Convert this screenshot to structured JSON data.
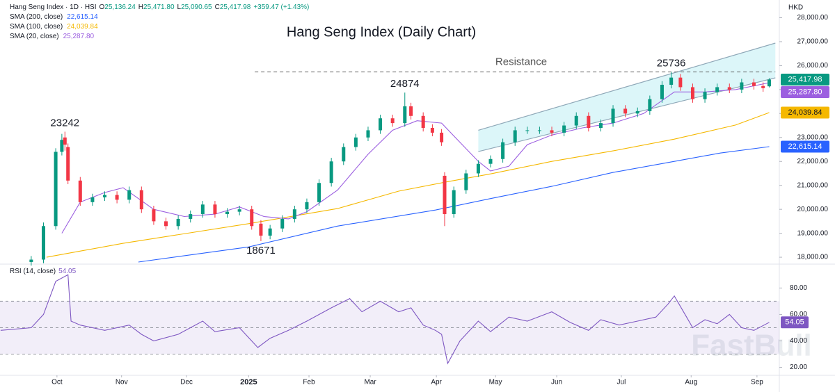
{
  "watermark": "FastBull",
  "chart_data": [
    {
      "type": "candlestick",
      "title": "Hang Seng Index (Daily Chart)",
      "currency": "HKD",
      "header": {
        "symbol": "Hang Seng Index · 1D · HSI",
        "fields": [
          {
            "key": "O",
            "value": "25,136.24"
          },
          {
            "key": "H",
            "value": "25,471.80"
          },
          {
            "key": "L",
            "value": "25,090.65"
          },
          {
            "key": "C",
            "value": "25,417.98"
          }
        ],
        "change": "+359.47 (+1.43%)"
      },
      "up_color": "#089981",
      "down_color": "#f23645",
      "x": [
        0,
        4,
        8,
        10,
        11,
        12,
        16,
        20,
        24,
        28,
        32,
        36,
        40,
        44,
        48,
        52,
        56,
        60,
        64,
        68,
        72,
        75,
        78,
        82,
        86,
        90,
        94,
        98,
        102,
        106,
        110,
        114,
        118,
        122,
        124,
        128,
        131,
        134,
        135,
        138,
        142,
        146,
        150,
        154,
        158,
        162,
        166,
        170,
        174,
        178,
        182,
        186,
        190,
        194,
        198,
        202,
        206,
        209,
        212,
        216,
        220,
        224,
        228,
        232,
        236,
        239,
        241
      ],
      "open": [
        17800,
        17900,
        19300,
        22400,
        23000,
        22600,
        21200,
        20300,
        20500,
        20600,
        20400,
        20800,
        20000,
        19500,
        19300,
        19600,
        19800,
        20200,
        19800,
        19900,
        20000,
        19400,
        18900,
        19200,
        19600,
        20000,
        20300,
        21100,
        22000,
        22600,
        23000,
        23300,
        23800,
        23600,
        24300,
        23900,
        23400,
        23200,
        21400,
        19800,
        20800,
        21500,
        21900,
        22100,
        22800,
        23300,
        23300,
        23300,
        23200,
        23500,
        23900,
        23400,
        23600,
        24200,
        24000,
        24100,
        24600,
        25200,
        25500,
        25100,
        24600,
        24900,
        25100,
        25000,
        25300,
        25150,
        25136.24
      ],
      "high": [
        18050,
        19450,
        22550,
        23150,
        23242,
        22750,
        21350,
        20650,
        20750,
        20750,
        20950,
        20950,
        20150,
        19650,
        19750,
        19950,
        20350,
        20350,
        20050,
        20150,
        20150,
        19550,
        19350,
        19750,
        20150,
        20450,
        21250,
        22150,
        22750,
        23150,
        23450,
        23950,
        23950,
        24874,
        24450,
        24050,
        23550,
        23350,
        21550,
        20950,
        21650,
        22050,
        22250,
        22950,
        23450,
        23450,
        23450,
        23450,
        23650,
        24050,
        24050,
        23750,
        24350,
        24350,
        24250,
        24750,
        25350,
        25736,
        25650,
        25250,
        25050,
        25250,
        25250,
        25450,
        25450,
        25300,
        25471.8
      ],
      "low": [
        17650,
        17750,
        19150,
        22250,
        22450,
        21050,
        20150,
        20150,
        20350,
        20250,
        20250,
        19850,
        19350,
        19150,
        19150,
        19450,
        19650,
        19650,
        19650,
        19750,
        19150,
        18671,
        18750,
        19050,
        19450,
        19850,
        20150,
        20950,
        21850,
        22450,
        22850,
        23150,
        23450,
        23450,
        23750,
        23250,
        23050,
        22650,
        19300,
        19650,
        20650,
        21350,
        21750,
        21950,
        22650,
        23150,
        23150,
        23050,
        23050,
        23350,
        23250,
        23250,
        23450,
        23850,
        23850,
        23950,
        24450,
        25050,
        24950,
        24450,
        24450,
        24750,
        24850,
        24850,
        25000,
        24910,
        25090.65
      ],
      "close": [
        17900,
        19300,
        22400,
        22900,
        22700,
        21200,
        20300,
        20500,
        20600,
        20400,
        20800,
        20000,
        19500,
        19300,
        19600,
        19800,
        20200,
        19800,
        19900,
        20000,
        19300,
        18900,
        19200,
        19600,
        20000,
        20300,
        21100,
        22000,
        22600,
        23000,
        23300,
        23800,
        23600,
        24300,
        23900,
        23400,
        23200,
        22800,
        19800,
        20800,
        21500,
        21900,
        22100,
        22800,
        23300,
        23300,
        23300,
        23200,
        23500,
        23900,
        23400,
        23600,
        24200,
        24000,
        24100,
        24600,
        25200,
        25500,
        25100,
        24600,
        24900,
        25100,
        25000,
        25300,
        25150,
        25060,
        25417.98
      ],
      "last_label": "25,417.98",
      "overlays": [
        {
          "name": "SMA (200, close)",
          "color": "#2962ff",
          "last_label": "22,615.14",
          "x": [
            35,
            71,
            100,
            132,
            150,
            170,
            190,
            210,
            225,
            241
          ],
          "values": [
            17800,
            18430,
            19300,
            19970,
            20450,
            20960,
            21540,
            22000,
            22350,
            22615.14
          ]
        },
        {
          "name": "SMA (100, close)",
          "color": "#f5b800",
          "last_label": "24,039.84",
          "x": [
            5,
            30,
            71,
            100,
            120,
            135,
            150,
            170,
            190,
            210,
            230,
            241
          ],
          "values": [
            18000,
            18580,
            19400,
            20030,
            20760,
            21130,
            21480,
            22000,
            22440,
            22930,
            23520,
            24039.84
          ]
        },
        {
          "name": "SMA (20, close)",
          "color": "#9c5fe0",
          "last_label": "25,287.80",
          "x": [
            10,
            16,
            24,
            30,
            40,
            50,
            60,
            68,
            76,
            84,
            90,
            100,
            110,
            118,
            126,
            134,
            140,
            146,
            150,
            156,
            162,
            170,
            180,
            190,
            200,
            210,
            220,
            230,
            241
          ],
          "values": [
            19000,
            20300,
            20700,
            20900,
            20000,
            19700,
            19800,
            20100,
            19700,
            19600,
            19900,
            20800,
            22300,
            23300,
            23700,
            23600,
            22800,
            22000,
            21600,
            21800,
            22700,
            23100,
            23400,
            23600,
            24000,
            24900,
            24900,
            25000,
            25287.8
          ]
        }
      ],
      "channel": {
        "x": [
          146,
          243
        ],
        "upper": [
          23300,
          26940
        ],
        "lower": [
          22410,
          25490
        ],
        "color": "#8fa8b8"
      },
      "resistance": {
        "label": "Resistance",
        "value": 25736,
        "x": [
          73,
          243
        ],
        "label_x": 160
      },
      "annotations": [
        {
          "text": "23242",
          "x": 11,
          "y": 23242,
          "position": "above"
        },
        {
          "text": "24874",
          "x": 122,
          "y": 24874,
          "position": "above"
        },
        {
          "text": "18671",
          "x": 75,
          "y": 18671,
          "position": "below"
        },
        {
          "text": "25736",
          "x": 209,
          "y": 25736,
          "position": "above"
        }
      ],
      "xlim": [
        -10.2,
        244.3
      ],
      "ylim": [
        17770,
        28740
      ],
      "yticks": [
        {
          "value": 18000,
          "label": "18,000.00"
        },
        {
          "value": 19000,
          "label": "19,000.00"
        },
        {
          "value": 20000,
          "label": "20,000.00"
        },
        {
          "value": 21000,
          "label": "21,000.00"
        },
        {
          "value": 22000,
          "label": "22,000.00"
        },
        {
          "value": 23000,
          "label": "23,000.00"
        },
        {
          "value": 24000,
          "label": "24,000.00"
        },
        {
          "value": 25000,
          "label": "25,000.00"
        },
        {
          "value": 26000,
          "label": "26,000.00"
        },
        {
          "value": 27000,
          "label": "27,000.00"
        },
        {
          "value": 28000,
          "label": "28,000.00"
        }
      ]
    },
    {
      "type": "line",
      "name": "RSI (14, close)",
      "color": "#7e57c2",
      "last_label": "54.05",
      "x": [
        -10,
        0,
        4,
        8,
        12,
        13,
        16,
        24,
        32,
        36,
        40,
        48,
        56,
        60,
        68,
        74,
        78,
        84,
        90,
        98,
        104,
        108,
        114,
        120,
        124,
        128,
        132,
        134,
        136,
        140,
        146,
        150,
        156,
        162,
        170,
        176,
        182,
        186,
        192,
        198,
        204,
        208,
        210,
        214,
        216,
        220,
        224,
        228,
        232,
        236,
        241
      ],
      "values": [
        48,
        50,
        60,
        85,
        90,
        55,
        52,
        48,
        52,
        45,
        40,
        45,
        55,
        47,
        50,
        35,
        42,
        48,
        55,
        65,
        72,
        62,
        70,
        62,
        65,
        52,
        48,
        45,
        23,
        40,
        55,
        47,
        58,
        55,
        62,
        54,
        48,
        56,
        52,
        55,
        58,
        68,
        74,
        58,
        50,
        56,
        53,
        60,
        50,
        48,
        54.05
      ],
      "band": [
        30,
        70
      ],
      "levels": [
        30,
        50,
        70
      ],
      "xlim": [
        -10.2,
        244.3
      ],
      "ylim": [
        14,
        97
      ],
      "yticks": [
        {
          "value": 20,
          "label": "20.00"
        },
        {
          "value": 40,
          "label": "40.00"
        },
        {
          "value": 60,
          "label": "60.00"
        },
        {
          "value": 80,
          "label": "80.00"
        }
      ],
      "xticks": [
        {
          "value": 8.4,
          "label": "Oct"
        },
        {
          "value": 29.5,
          "label": "Nov"
        },
        {
          "value": 50.7,
          "label": "Dec"
        },
        {
          "value": 71,
          "label": "2025"
        },
        {
          "value": 90.7,
          "label": "Feb"
        },
        {
          "value": 110.7,
          "label": "Mar"
        },
        {
          "value": 132.3,
          "label": "Apr"
        },
        {
          "value": 151.6,
          "label": "May"
        },
        {
          "value": 171.6,
          "label": "Jun"
        },
        {
          "value": 192.7,
          "label": "Jul"
        },
        {
          "value": 215.5,
          "label": "Aug"
        },
        {
          "value": 237,
          "label": "Sep"
        }
      ]
    }
  ]
}
